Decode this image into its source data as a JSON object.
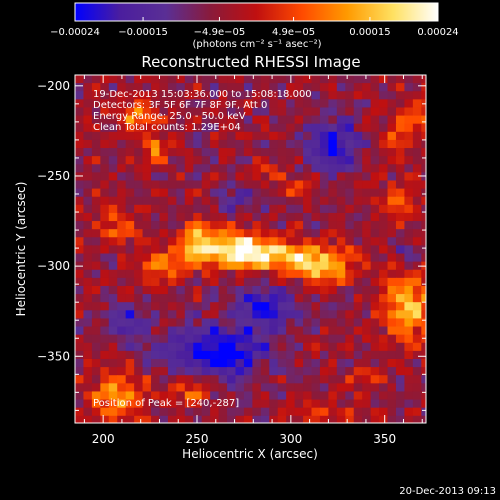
{
  "chart_data": {
    "type": "heatmap",
    "title": "Reconstructed RHESSI Image",
    "xlabel": "Heliocentric X (arcsec)",
    "ylabel": "Heliocentric Y (arcsec)",
    "xlim": [
      185,
      372
    ],
    "ylim": [
      -387,
      -194
    ],
    "x_ticks": [
      200,
      250,
      300,
      350
    ],
    "y_ticks": [
      -200,
      -250,
      -300,
      -350
    ],
    "x_tick_labels": [
      "200",
      "250",
      "300",
      "350"
    ],
    "y_tick_labels": [
      "−200",
      "−250",
      "−300",
      "−350"
    ],
    "colorbar": {
      "range": [
        -0.00024,
        0.00024
      ],
      "ticks": [
        -0.00024,
        -0.00015,
        -4.9e-05,
        4.9e-05,
        0.00015,
        0.00024
      ],
      "tick_labels": [
        "−0.00024",
        "−0.00015",
        "−4.9e−05",
        "4.9e−05",
        "0.00015",
        "0.00024"
      ],
      "unit_label": "(photons cm⁻² s⁻¹ asec⁻²)",
      "colormap": [
        "#0000ff",
        "#4b1e9e",
        "#5a2f95",
        "#8a1a3a",
        "#c01010",
        "#ff4a00",
        "#ff9a00",
        "#ffe060",
        "#ffffff"
      ]
    },
    "grid": false,
    "peak": {
      "x": 240,
      "y": -287
    },
    "sources": [
      {
        "x": 290,
        "y": -292,
        "sx": 22,
        "sy": 6,
        "amp": 0.00023
      },
      {
        "x": 248,
        "y": -285,
        "sx": 7,
        "sy": 8,
        "amp": 0.00024
      },
      {
        "x": 270,
        "y": -286,
        "sx": 8,
        "sy": 7,
        "amp": 0.0002
      },
      {
        "x": 315,
        "y": -300,
        "sx": 10,
        "sy": 6,
        "amp": 0.00017
      },
      {
        "x": 228,
        "y": -298,
        "sx": 8,
        "sy": 6,
        "amp": 0.00015
      },
      {
        "x": 205,
        "y": -277,
        "sx": 8,
        "sy": 6,
        "amp": 0.00013
      },
      {
        "x": 215,
        "y": -215,
        "sx": 8,
        "sy": 7,
        "amp": 0.00013
      },
      {
        "x": 225,
        "y": -232,
        "sx": 5,
        "sy": 5,
        "amp": 0.00015
      },
      {
        "x": 360,
        "y": -320,
        "sx": 10,
        "sy": 14,
        "amp": 0.0002
      },
      {
        "x": 355,
        "y": -262,
        "sx": 7,
        "sy": 6,
        "amp": 0.00013
      },
      {
        "x": 365,
        "y": -215,
        "sx": 7,
        "sy": 7,
        "amp": 0.00012
      },
      {
        "x": 352,
        "y": -228,
        "sx": 6,
        "sy": 6,
        "amp": 0.0001
      },
      {
        "x": 205,
        "y": -370,
        "sx": 10,
        "sy": 10,
        "amp": 0.00016
      },
      {
        "x": 245,
        "y": -367,
        "sx": 7,
        "sy": 6,
        "amp": 0.00011
      },
      {
        "x": 315,
        "y": -380,
        "sx": 9,
        "sy": 5,
        "amp": 0.0001
      },
      {
        "x": 335,
        "y": -360,
        "sx": 6,
        "sy": 5,
        "amp": 8e-05
      },
      {
        "x": 285,
        "y": -245,
        "sx": 6,
        "sy": 5,
        "amp": 8e-05
      },
      {
        "x": 300,
        "y": -255,
        "sx": 6,
        "sy": 5,
        "amp": 7e-05
      }
    ],
    "negatives": [
      {
        "x": 260,
        "y": -345,
        "sx": 18,
        "sy": 10,
        "amp": -0.00022
      },
      {
        "x": 285,
        "y": -320,
        "sx": 12,
        "sy": 8,
        "amp": -0.00016
      },
      {
        "x": 320,
        "y": -230,
        "sx": 10,
        "sy": 10,
        "amp": -0.00018
      },
      {
        "x": 210,
        "y": -330,
        "sx": 8,
        "sy": 8,
        "amp": -0.00012
      },
      {
        "x": 270,
        "y": -260,
        "sx": 8,
        "sy": 5,
        "amp": -0.00012
      },
      {
        "x": 360,
        "y": -290,
        "sx": 6,
        "sy": 5,
        "amp": -0.0001
      }
    ]
  },
  "annotations": {
    "time_range": "19-Dec-2013 15:03:36.000 to 15:08:18.000",
    "detectors": "Detectors: 3F 5F 6F 7F 8F 9F, Att 0",
    "energy": "Energy Range: 25.0 - 50.0 keV",
    "method": "Clean   Total counts: 1.29E+04",
    "peak_text": "Position of Peak = [240,-287]"
  },
  "footer": {
    "timestamp": "20-Dec-2013 09:13"
  }
}
